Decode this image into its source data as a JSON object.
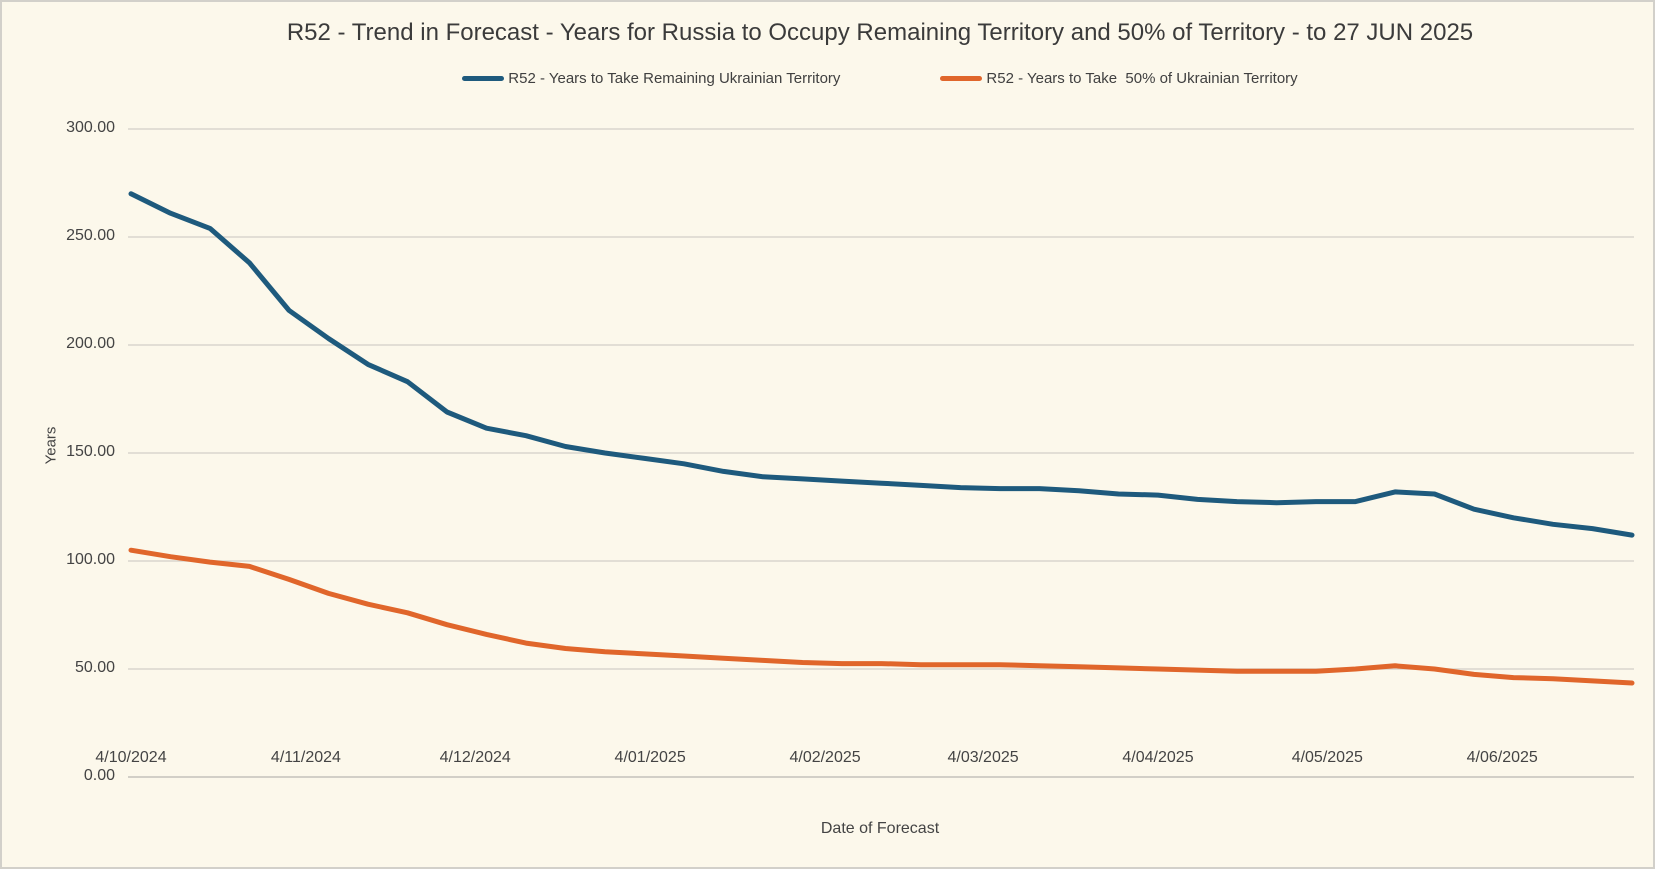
{
  "title": "R52 - Trend in Forecast - Years for Russia to Occupy Remaining Territory and 50% of Territory - to 27 JUN 2025",
  "colors": {
    "background": "#FCF8EB",
    "border": "#D2D0CA",
    "gridline": "#D9D6CE",
    "axis_line": "#C3C1BB",
    "text": "#404040",
    "series_remaining": "#1E5A7D",
    "series_half": "#E0662B"
  },
  "chart_data": {
    "type": "line",
    "title": "R52 - Trend in Forecast - Years for Russia to Occupy Remaining Territory and 50% of Territory - to 27 JUN 2025",
    "xlabel": "Date of Forecast",
    "ylabel": "Years",
    "ylim": [
      0,
      300
    ],
    "grid": "horizontal",
    "legend_position": "top",
    "yticks": [
      0,
      50,
      100,
      150,
      200,
      250,
      300
    ],
    "ytick_labels": [
      "0.00",
      "50.00",
      "100.00",
      "150.00",
      "200.00",
      "250.00",
      "300.00"
    ],
    "xtick_labels": [
      "4/10/2024",
      "4/11/2024",
      "4/12/2024",
      "4/01/2025",
      "4/02/2025",
      "4/03/2025",
      "4/04/2025",
      "4/05/2025",
      "4/06/2025"
    ],
    "xtick_day_offsets": [
      0,
      31,
      61,
      92,
      123,
      151,
      182,
      212,
      243
    ],
    "x_dates": [
      "10/4/2024",
      "10/11/2024",
      "10/18/2024",
      "10/25/2024",
      "11/1/2024",
      "11/8/2024",
      "11/15/2024",
      "11/22/2024",
      "11/29/2024",
      "12/6/2024",
      "12/13/2024",
      "12/20/2024",
      "12/27/2024",
      "1/3/2025",
      "1/10/2025",
      "1/17/2025",
      "1/24/2025",
      "1/31/2025",
      "2/7/2025",
      "2/14/2025",
      "2/21/2025",
      "2/28/2025",
      "3/7/2025",
      "3/14/2025",
      "3/21/2025",
      "3/28/2025",
      "4/4/2025",
      "4/11/2025",
      "4/18/2025",
      "4/25/2025",
      "5/2/2025",
      "5/9/2025",
      "5/16/2025",
      "5/23/2025",
      "5/30/2025",
      "6/6/2025",
      "6/13/2025",
      "6/20/2025",
      "6/27/2025"
    ],
    "series": [
      {
        "name": "R52 - Years to Take Remaining Ukrainian Territory",
        "color": "#1E5A7D",
        "values": [
          270,
          261,
          254,
          238,
          216,
          203,
          191,
          183,
          169,
          161.5,
          158,
          153,
          150,
          147.5,
          145,
          141.5,
          139,
          138,
          137,
          136,
          135,
          134,
          133.5,
          133.5,
          132.5,
          131,
          130.5,
          128.5,
          127.5,
          127,
          127.5,
          127.5,
          132,
          131,
          124,
          120,
          117,
          115,
          112
        ]
      },
      {
        "name": "R52 - Years to Take  50% of Ukrainian Territory",
        "color": "#E0662B",
        "values": [
          105,
          102,
          99.5,
          97.5,
          91.5,
          85,
          80,
          76,
          70.5,
          66,
          62,
          59.5,
          58,
          57,
          56,
          55,
          54,
          53,
          52.5,
          52.5,
          52,
          52,
          52,
          51.5,
          51,
          50.5,
          50,
          49.5,
          49,
          49,
          49,
          50,
          51.5,
          50,
          47.5,
          46,
          45.5,
          44.5,
          43.5
        ]
      }
    ]
  }
}
